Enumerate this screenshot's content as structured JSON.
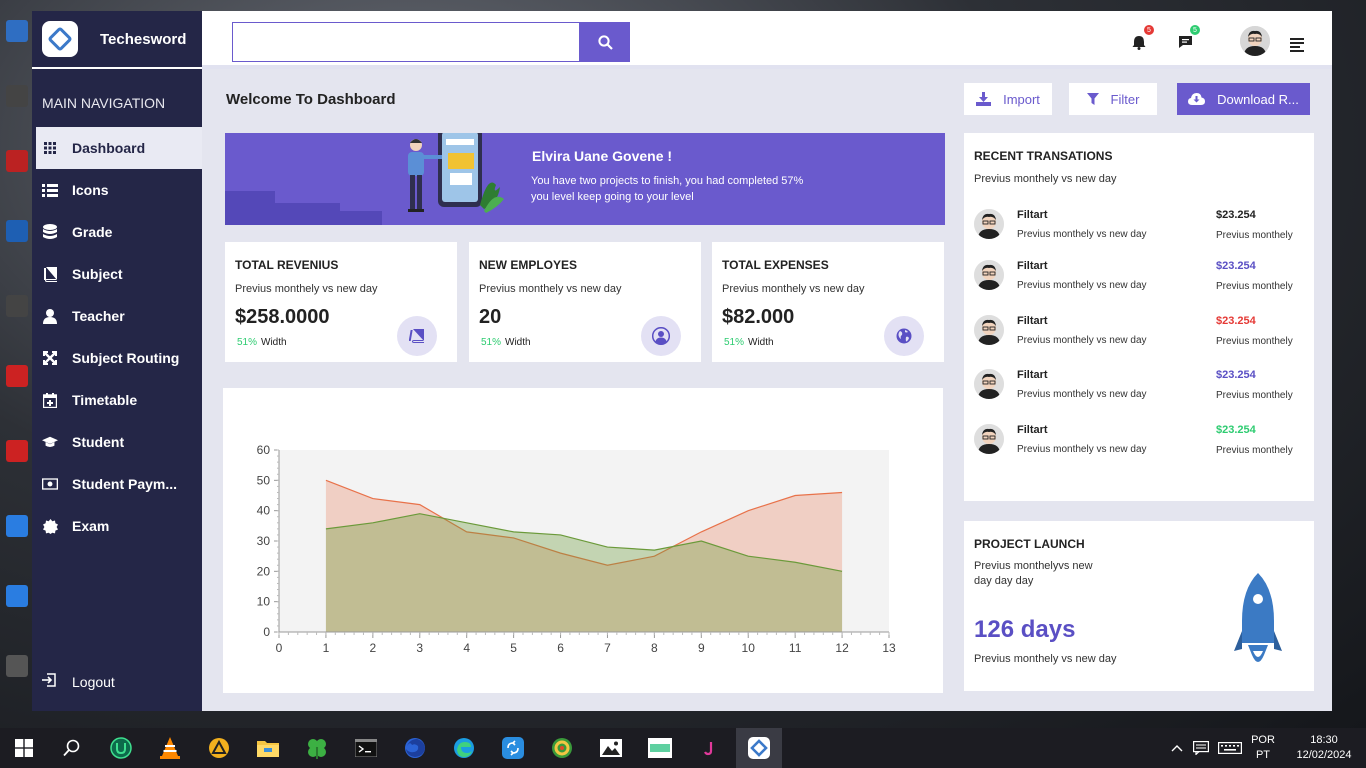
{
  "brand": {
    "name": "Techesword"
  },
  "sidebar": {
    "heading": "MAIN NAVIGATION",
    "items": [
      {
        "label": "Dashboard",
        "icon": "grid-icon",
        "active": true
      },
      {
        "label": "Icons",
        "icon": "list-icon"
      },
      {
        "label": "Grade",
        "icon": "database-icon"
      },
      {
        "label": "Subject",
        "icon": "book-icon"
      },
      {
        "label": "Teacher",
        "icon": "user-icon"
      },
      {
        "label": "Subject Routing",
        "icon": "expand-icon"
      },
      {
        "label": "Timetable",
        "icon": "calendar-plus-icon"
      },
      {
        "label": "Student",
        "icon": "graduation-cap-icon"
      },
      {
        "label": "Student Paym...",
        "icon": "money-icon"
      },
      {
        "label": "Exam",
        "icon": "badge-icon"
      }
    ],
    "logout": "Logout"
  },
  "header": {
    "search_placeholder": "",
    "notifications_count": "5",
    "messages_count": "5"
  },
  "page": {
    "title": "Welcome To Dashboard"
  },
  "toolbar": {
    "import": "Import",
    "filter": "Filter",
    "download": "Download R..."
  },
  "banner": {
    "name": "Elvira Uane Govene !",
    "text": "You have two projects to finish, you had completed 57% you level keep going to your level"
  },
  "stats": [
    {
      "title": "TOTAL REVENIUS",
      "sub": "Previus monthely vs new day",
      "value": "$258.0000",
      "pct": "51%",
      "pct_label": "Width",
      "icon": "book-icon"
    },
    {
      "title": "NEW EMPLOYES",
      "sub": "Previus monthely vs new day",
      "value": "20",
      "pct": "51%",
      "pct_label": "Width",
      "icon": "user-circle-icon"
    },
    {
      "title": "TOTAL EXPENSES",
      "sub": "Previus monthely vs new day",
      "value": "$82.000",
      "pct": "51%",
      "pct_label": "Width",
      "icon": "globe-icon"
    }
  ],
  "chart_data": {
    "type": "area",
    "x": [
      1,
      2,
      3,
      4,
      5,
      6,
      7,
      8,
      9,
      10,
      11,
      12
    ],
    "series": [
      {
        "values": [
          50,
          44,
          42,
          33,
          31,
          26,
          22,
          25,
          33,
          40,
          45,
          46
        ],
        "color": "#e8724a"
      },
      {
        "values": [
          34,
          36,
          39,
          36,
          33,
          32,
          28,
          27,
          30,
          25,
          23,
          20
        ],
        "color": "#6b9a3a"
      }
    ],
    "xlim": [
      0,
      13
    ],
    "ylim": [
      0,
      60
    ],
    "xticks": [
      0,
      1,
      2,
      3,
      4,
      5,
      6,
      7,
      8,
      9,
      10,
      11,
      12,
      13
    ],
    "yticks": [
      0,
      10,
      20,
      30,
      40,
      50,
      60
    ],
    "title": "",
    "xlabel": "",
    "ylabel": ""
  },
  "transactions": {
    "title": "RECENT TRANSATIONS",
    "sub": "Previus monthely vs new day",
    "items": [
      {
        "name": "Filtart",
        "desc": "Previus monthely vs new day",
        "amount": "$23.254",
        "amount_sub": "Previus monthely",
        "color": "#222222"
      },
      {
        "name": "Filtart",
        "desc": "Previus monthely vs new day",
        "amount": "$23.254",
        "amount_sub": "Previus monthely",
        "color": "#5a4fc4"
      },
      {
        "name": "Filtart",
        "desc": "Previus monthely vs new day",
        "amount": "$23.254",
        "amount_sub": "Previus monthely",
        "color": "#e53935"
      },
      {
        "name": "Filtart",
        "desc": "Previus monthely vs new day",
        "amount": "$23.254",
        "amount_sub": "Previus monthely",
        "color": "#5a4fc4"
      },
      {
        "name": "Filtart",
        "desc": "Previus monthely vs new day",
        "amount": "$23.254",
        "amount_sub": "Previus monthely",
        "color": "#2ecc71"
      }
    ]
  },
  "project": {
    "title": "PROJECT LAUNCH",
    "sub": "Previus monthelyvs new day day day",
    "days": "126  days",
    "foot": "Previus monthely vs new day"
  },
  "taskbar": {
    "lang": "POR",
    "region": "PT",
    "time": "18:30",
    "date": "12/02/2024"
  },
  "colors": {
    "accent": "#6a5acd",
    "sidebar": "#242647",
    "background": "#e4e5ef"
  }
}
